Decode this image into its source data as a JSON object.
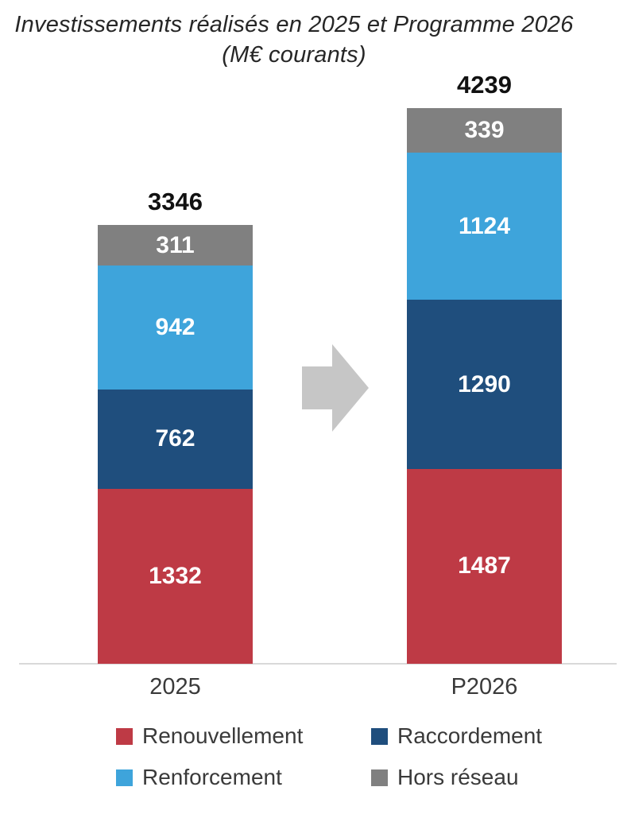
{
  "title": {
    "line1": "Investissements réalisés en 2025 et Programme 2026",
    "line2": "(M€ courants)"
  },
  "chart_data": {
    "type": "bar",
    "subtype": "stacked-column",
    "unit": "M€ courants",
    "categories": [
      "2025",
      "P2026"
    ],
    "totals": [
      3346,
      4239
    ],
    "series": [
      {
        "name": "Renouvellement",
        "color": "#be3a45",
        "values": [
          1332,
          1487
        ]
      },
      {
        "name": "Raccordement",
        "color": "#1f4e7d",
        "values": [
          762,
          1290
        ]
      },
      {
        "name": "Renforcement",
        "color": "#3ea4db",
        "values": [
          942,
          1124
        ]
      },
      {
        "name": "Hors réseau",
        "color": "#808080",
        "values": [
          311,
          339
        ]
      }
    ],
    "legend_position": "bottom",
    "legend_columns": 2,
    "axis_line_color": "#d9d9d9",
    "arrow_color": "#c6c6c6",
    "value_label_color": "#ffffff",
    "grid": false
  }
}
